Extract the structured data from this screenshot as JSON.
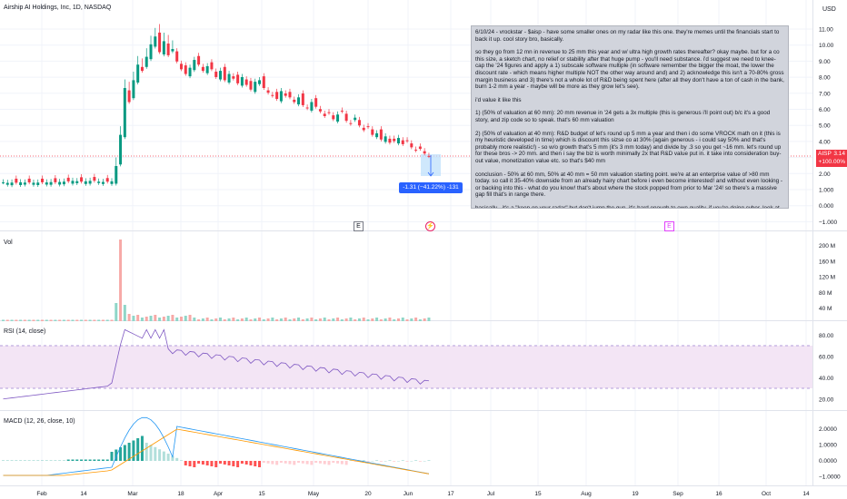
{
  "header": {
    "symbol_title": "Airship AI Holdings, Inc, 1D, NASDAQ",
    "currency": "USD"
  },
  "price_axis": {
    "ticks": [
      "11.00",
      "10.00",
      "9.00",
      "8.00",
      "7.00",
      "6.00",
      "5.00",
      "4.00",
      "3.00",
      "2.00",
      "1.000",
      "0.000",
      "−1.000"
    ],
    "last_price_tag": {
      "ticker": "AISP",
      "price": "3.14",
      "change": "+100.00%"
    }
  },
  "measure_label": "-1.31 (−41.22%) -131",
  "event_badges": [
    {
      "label": "E",
      "kind": "earnings"
    },
    {
      "label": "⚡",
      "kind": "news"
    },
    {
      "label": "E",
      "kind": "earnings-upcoming"
    }
  ],
  "annotation": {
    "paragraphs": [
      "6/10/24 - vrockstar - $aisp - have some smaller ones on my radar like this one. they're memes until the financials start to back it up. cool story bro, basically.",
      "so they go from 12 mn in revenue to 25 mm this year and w/ ultra high growth rates thereafter? okay maybe. but for a co this size, a sketch chart, no relief or stability after that huge pump - you'll need substance. i'd suggest we need to knee-cap the '24 figures and apply  a 1) subscale software multiple (in software remember the bigger the moat, the lower the discount rate - which means higher multiple NOT the other way around and) and 2) acknowledge this isn't a 70-80% gross margin business and 3) there's not a whole lot of R&D being spent here (after all they don't have a ton of cash in the bank, burn 1-2 mm a year - maybe will be more as they grow let's see).",
      "i'd value it like this",
      "1) (50% of valuation at 60 mm): 20 mm revenue in '24 gets a 3x multiple (this is generous i'll point out) b/c it's a good story, and zip code so to speak. that's 60 mm valuation",
      "2) (50% of valuation at 40 mm): R&D budget of let's round up 5 mm a year and then i do some VROCK math on it (this is my heuristic developed in time) which is discount this sizse co at 30% (again generous - i could say 50% and that's probably more realistic!) - so w/o growth that's 5 mm (it's 3 mm today) and divide by .3 so you get ~16 mm. let's round up for these bros -> 20 mm. and then i say the biz is worth minimally 2x that R&D value put in. it take into consideration buy-out value, monetization value etc. so that's $40 mm",
      "conclusion - 50% at 60 mm, 50% at 40 mm = 50 mm valuation starting point. we're at an enterprise value of >80 mm today. so call it 35-40% downside from an already hairy chart before i even become interested! and without even looking - or backing into this - what do you know! that's about where the stock popped from prior to Mar '24! so there's a massive gap fill that's in range there.",
      "basically - it's a \"keep on your radar\" but don't jump the gun. it's hard enough to own quality. if you're doing cyber, look at $panw, $s, $crwd and my fav \"semi-cyber\" $you before you ape on something like this hoping for a quick pop. unless you have really dig in and know the timeline of catalysts, you're fighting a battle against getting dunked on by bag holders looking to shill those on your PnL at this point. the valuation doesn't support these levels fundamentally.",
      "V"
    ]
  },
  "volume_pane": {
    "label": "Vol",
    "ticks": [
      "200 M",
      "160 M",
      "120 M",
      "80 M",
      "40 M"
    ]
  },
  "rsi_pane": {
    "label": "RSI (14, close)",
    "ticks": [
      "80.00",
      "60.00",
      "40.00",
      "20.00"
    ],
    "upper_band": 70,
    "lower_band": 30
  },
  "macd_pane": {
    "label": "MACD (12, 26, close, 10)",
    "ticks": [
      "2.0000",
      "1.0000",
      "0.0000",
      "−1.0000"
    ]
  },
  "time_axis": {
    "ticks": [
      "Feb",
      "14",
      "Mar",
      "18",
      "Apr",
      "15",
      "May",
      "20",
      "Jun",
      "17",
      "Jul",
      "15",
      "Aug",
      "19",
      "Sep",
      "16",
      "Oct",
      "14"
    ]
  },
  "colors": {
    "up": "#089981",
    "down": "#f23645",
    "rsi_line": "#7e57c2",
    "rsi_band_fill": "#f3e5f5",
    "macd_line": "#2196f3",
    "signal_line": "#ff9800",
    "measure": "#2962ff"
  },
  "chart_data": {
    "type": "candlestick",
    "title": "Airship AI Holdings, Inc, 1D, NASDAQ",
    "ylim": [
      -1.2,
      11.5
    ],
    "closes": [
      1.45,
      1.42,
      1.44,
      1.43,
      1.46,
      1.44,
      1.45,
      1.43,
      1.44,
      1.46,
      1.45,
      1.47,
      1.46,
      1.48,
      1.5,
      1.52,
      1.55,
      1.53,
      1.5,
      1.52,
      1.55,
      1.56,
      1.5,
      1.48,
      1.5,
      1.52,
      2.5,
      4.5,
      7.5,
      6.6,
      8.0,
      9.0,
      8.6,
      9.5,
      10.3,
      10.8,
      9.8,
      10.5,
      9.6,
      10.0,
      9.2,
      8.7,
      8.4,
      8.8,
      9.3,
      9.0,
      8.6,
      8.9,
      8.7,
      8.2,
      8.6,
      8.0,
      8.4,
      8.1,
      7.8,
      8.2,
      7.7,
      7.4,
      7.9,
      8.0,
      7.5,
      7.2,
      7.0,
      6.8,
      7.3,
      7.0,
      6.9,
      6.6,
      6.9,
      6.4,
      6.2,
      6.6,
      6.3,
      6.0,
      5.7,
      5.9,
      5.5,
      5.8,
      6.0,
      5.4,
      5.2,
      5.6,
      5.1,
      4.8,
      5.0,
      4.5,
      4.6,
      4.2,
      4.4,
      4.0,
      4.1,
      4.3,
      3.9,
      4.1,
      3.7,
      3.5,
      3.6,
      3.3,
      3.14
    ]
  }
}
